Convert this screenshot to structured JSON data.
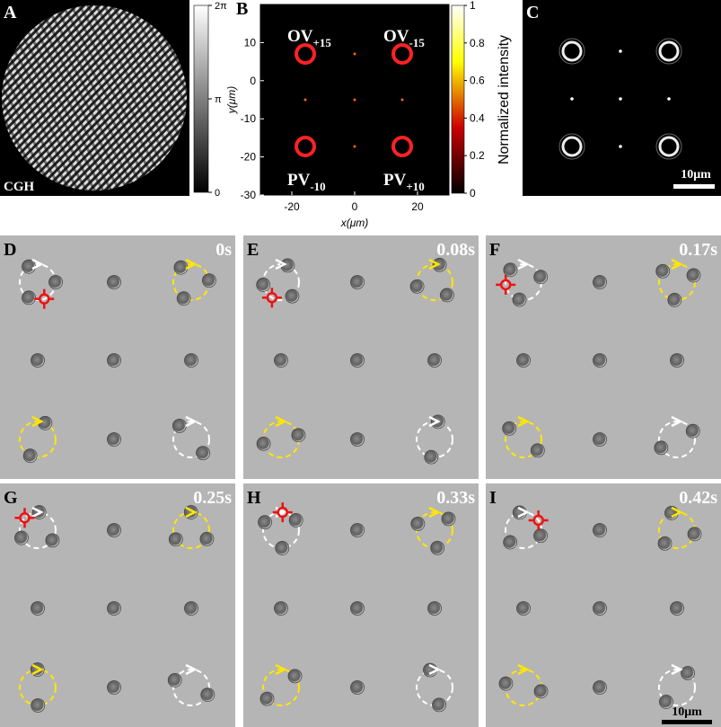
{
  "panel_a": {
    "label": "A",
    "caption": "CGH",
    "colorbar": {
      "lim": [
        0,
        2
      ],
      "ticks": [
        {
          "value": 2,
          "label": "2π"
        },
        {
          "value": 1,
          "label": "π"
        },
        0
      ]
    }
  },
  "panel_b": {
    "label": "B",
    "xlabel": "x(μm)",
    "ylabel": "y(μm)",
    "xlim": [
      -30,
      30
    ],
    "ylim": [
      -30,
      20
    ],
    "xticks": [
      -20,
      0,
      20
    ],
    "yticks": [
      10,
      0,
      -10,
      -20,
      -30
    ],
    "beams": [
      {
        "text": "OV",
        "sub": "+15"
      },
      {
        "text": "OV",
        "sub": "-15"
      },
      {
        "text": "PV",
        "sub": "-10"
      },
      {
        "text": "PV",
        "sub": "+10"
      }
    ],
    "colorbar": {
      "label": "Normalized intensity",
      "lim": [
        0,
        1
      ],
      "ticks": [
        1,
        0.8,
        0.6,
        0.4,
        0.2,
        0
      ]
    }
  },
  "panel_c": {
    "label": "C",
    "scale_bar": "10μm"
  },
  "frames": [
    {
      "label": "D",
      "time": "0s"
    },
    {
      "label": "E",
      "time": "0.08s"
    },
    {
      "label": "F",
      "time": "0.17s"
    },
    {
      "label": "G",
      "time": "0.25s"
    },
    {
      "label": "H",
      "time": "0.33s"
    },
    {
      "label": "I",
      "time": "0.42s"
    }
  ],
  "frames_scale_bar": "10μm"
}
